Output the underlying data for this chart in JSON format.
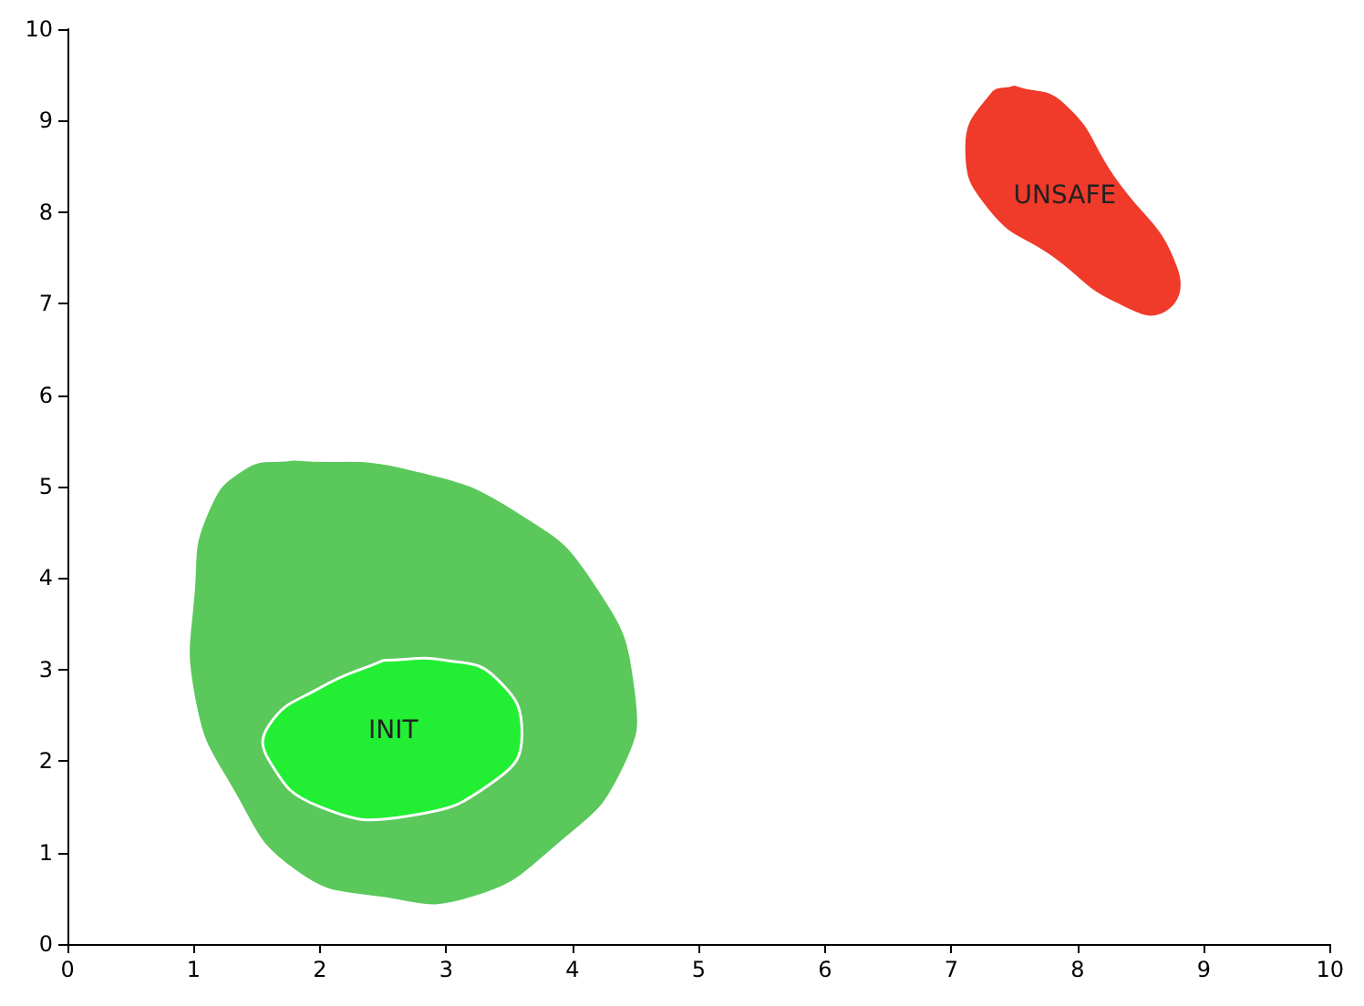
{
  "chart_data": {
    "type": "area",
    "xlim": [
      0,
      10
    ],
    "ylim": [
      0,
      10
    ],
    "xticks": [
      0,
      1,
      2,
      3,
      4,
      5,
      6,
      7,
      8,
      9,
      10
    ],
    "yticks": [
      0,
      1,
      2,
      3,
      4,
      5,
      6,
      7,
      8,
      9,
      10
    ],
    "grid": false,
    "series": [
      {
        "color": "#5ac85a",
        "x": [
          1.8,
          2.7,
          3.6,
          4.2,
          4.5,
          4.4,
          3.9,
          3.2,
          2.5,
          1.8,
          1.3,
          1.0,
          1.0,
          1.1,
          1.4,
          1.8
        ],
        "values": [
          5.3,
          5.2,
          4.7,
          3.9,
          2.8,
          1.9,
          1.1,
          0.5,
          0.5,
          0.8,
          1.7,
          2.7,
          3.9,
          4.7,
          5.2,
          5.3
        ]
      },
      {
        "name": "INIT",
        "color": "#22ee33",
        "x": [
          2.5,
          3.0,
          3.4,
          3.6,
          3.4,
          2.7,
          2.0,
          1.6,
          1.6,
          2.0,
          2.5
        ],
        "values": [
          3.1,
          3.1,
          2.9,
          2.3,
          1.8,
          1.4,
          1.5,
          2.0,
          2.4,
          2.8,
          3.1
        ]
      },
      {
        "name": "UNSAFE",
        "color": "#f03a2a",
        "x": [
          7.5,
          7.9,
          8.3,
          8.8,
          8.7,
          8.3,
          7.8,
          7.3,
          7.1,
          7.3,
          7.5
        ],
        "values": [
          9.4,
          9.2,
          8.4,
          7.4,
          6.9,
          7.0,
          7.5,
          8.0,
          8.7,
          9.3,
          9.4
        ]
      }
    ]
  }
}
